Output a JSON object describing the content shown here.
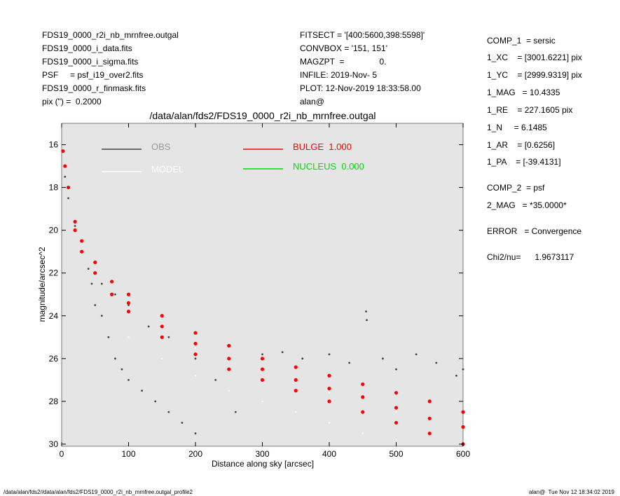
{
  "chart_data": {
    "type": "scatter",
    "title": "/data/alan/fds2/FDS19_0000_r2i_nb_mrnfree.outgal",
    "xlabel": "Distance along sky [arcsec]",
    "ylabel": "magnitude/arcsec^2",
    "xlim": [
      0,
      600
    ],
    "xticks": [
      0,
      100,
      200,
      300,
      400,
      500,
      600
    ],
    "ylim": [
      30.1,
      15
    ],
    "yticks": [
      16,
      18,
      20,
      22,
      24,
      26,
      28,
      30
    ],
    "background": "#e5e5e5",
    "series": [
      {
        "name": "OBS",
        "color": "#444444",
        "x": [
          5,
          10,
          20,
          30,
          40,
          45,
          50,
          60,
          70,
          80,
          90,
          100,
          120,
          140,
          160,
          180,
          200,
          60,
          80,
          100,
          130,
          160,
          200,
          230,
          260,
          300,
          330,
          360,
          400,
          430,
          455,
          456,
          480,
          500,
          530,
          560,
          590,
          600
        ],
        "values": [
          17.5,
          18.5,
          19.8,
          21,
          21.8,
          22.5,
          23.5,
          24,
          25,
          26,
          26.5,
          27,
          27.5,
          28,
          28.5,
          29,
          29.5,
          22.5,
          23,
          23.5,
          24.5,
          25,
          26,
          27,
          28.5,
          25.8,
          25.7,
          26,
          25.8,
          26.2,
          23.8,
          24.2,
          26,
          26.5,
          25.8,
          26.2,
          26.8,
          26.5
        ]
      },
      {
        "name": "MODEL",
        "color": "#ffffff",
        "x": [
          100,
          150,
          200,
          250,
          300,
          350,
          400,
          450,
          500,
          300,
          400,
          500,
          550,
          200,
          150,
          250
        ],
        "values": [
          25,
          26,
          26.8,
          27.5,
          28,
          28.5,
          29,
          29.5,
          29.8,
          26.5,
          27.6,
          28.5,
          28.8,
          25.5,
          24.6,
          25.3
        ]
      },
      {
        "name": "BULGE  1.000",
        "color": "#ff0000",
        "x": [
          2,
          5,
          10,
          20,
          30,
          50,
          75,
          100,
          150,
          200,
          250,
          300,
          350,
          400,
          450,
          500,
          550,
          600,
          20,
          30,
          50,
          75,
          100,
          150,
          200,
          250,
          300,
          350,
          400,
          450,
          500,
          550,
          600,
          100,
          200,
          300,
          400,
          500,
          600,
          550,
          450,
          350,
          250,
          150
        ],
        "values": [
          16.3,
          17,
          18,
          19.6,
          20.5,
          21.5,
          22.4,
          23,
          24,
          24.8,
          25.4,
          26,
          26.4,
          26.8,
          27.2,
          27.6,
          28,
          28.5,
          20,
          21,
          22,
          23,
          23.8,
          25,
          25.8,
          26.5,
          27,
          27.5,
          28,
          28.5,
          29,
          29.5,
          30,
          23.4,
          25.3,
          26.5,
          27.4,
          28.3,
          29.2,
          28.8,
          27.8,
          27,
          26,
          24.5
        ]
      },
      {
        "name": "NUCLEUS  0.000",
        "color": "#00dd00",
        "x": [],
        "values": []
      }
    ]
  },
  "left_info": [
    "FDS19_0000_r2i_nb_mrnfree.outgal",
    "FDS19_0000_i_data.fits",
    "FDS19_0000_i_sigma.fits",
    "PSF     = psf_i19_over2.fits",
    "FDS19_0000_r_finmask.fits",
    "pix (\") =  0.2000"
  ],
  "center_info": [
    "FITSECT = '[400:5600,398:5598]'",
    "CONVBOX = '151, 151'",
    "MAGZPT  =               0.",
    "INFILE: 2019-Nov- 5",
    "PLOT: 12-Nov-2019 18:33:58.00",
    "alan@"
  ],
  "right_info": [
    "COMP_1  = sersic",
    "1_XC    = [3001.6221] pix",
    "1_YC    = [2999.9319] pix",
    "1_MAG   = 10.4335",
    "1_RE    = 227.1605 pix",
    "1_N     = 6.1485",
    "1_AR    = [0.6256]",
    "1_PA    = [-39.4131]",
    "COMP_2  = psf",
    "2_MAG   = *35.0000*",
    "ERROR   = Convergence",
    "Chi2/nu=      1.9673117"
  ],
  "footer_left": "/data/alan/fds2//data/alan/fds2/FDS19_0000_r2i_nb_mrnfree.outgal_profile2",
  "footer_right": "alan@  Tue Nov 12 18:34:02 2019"
}
